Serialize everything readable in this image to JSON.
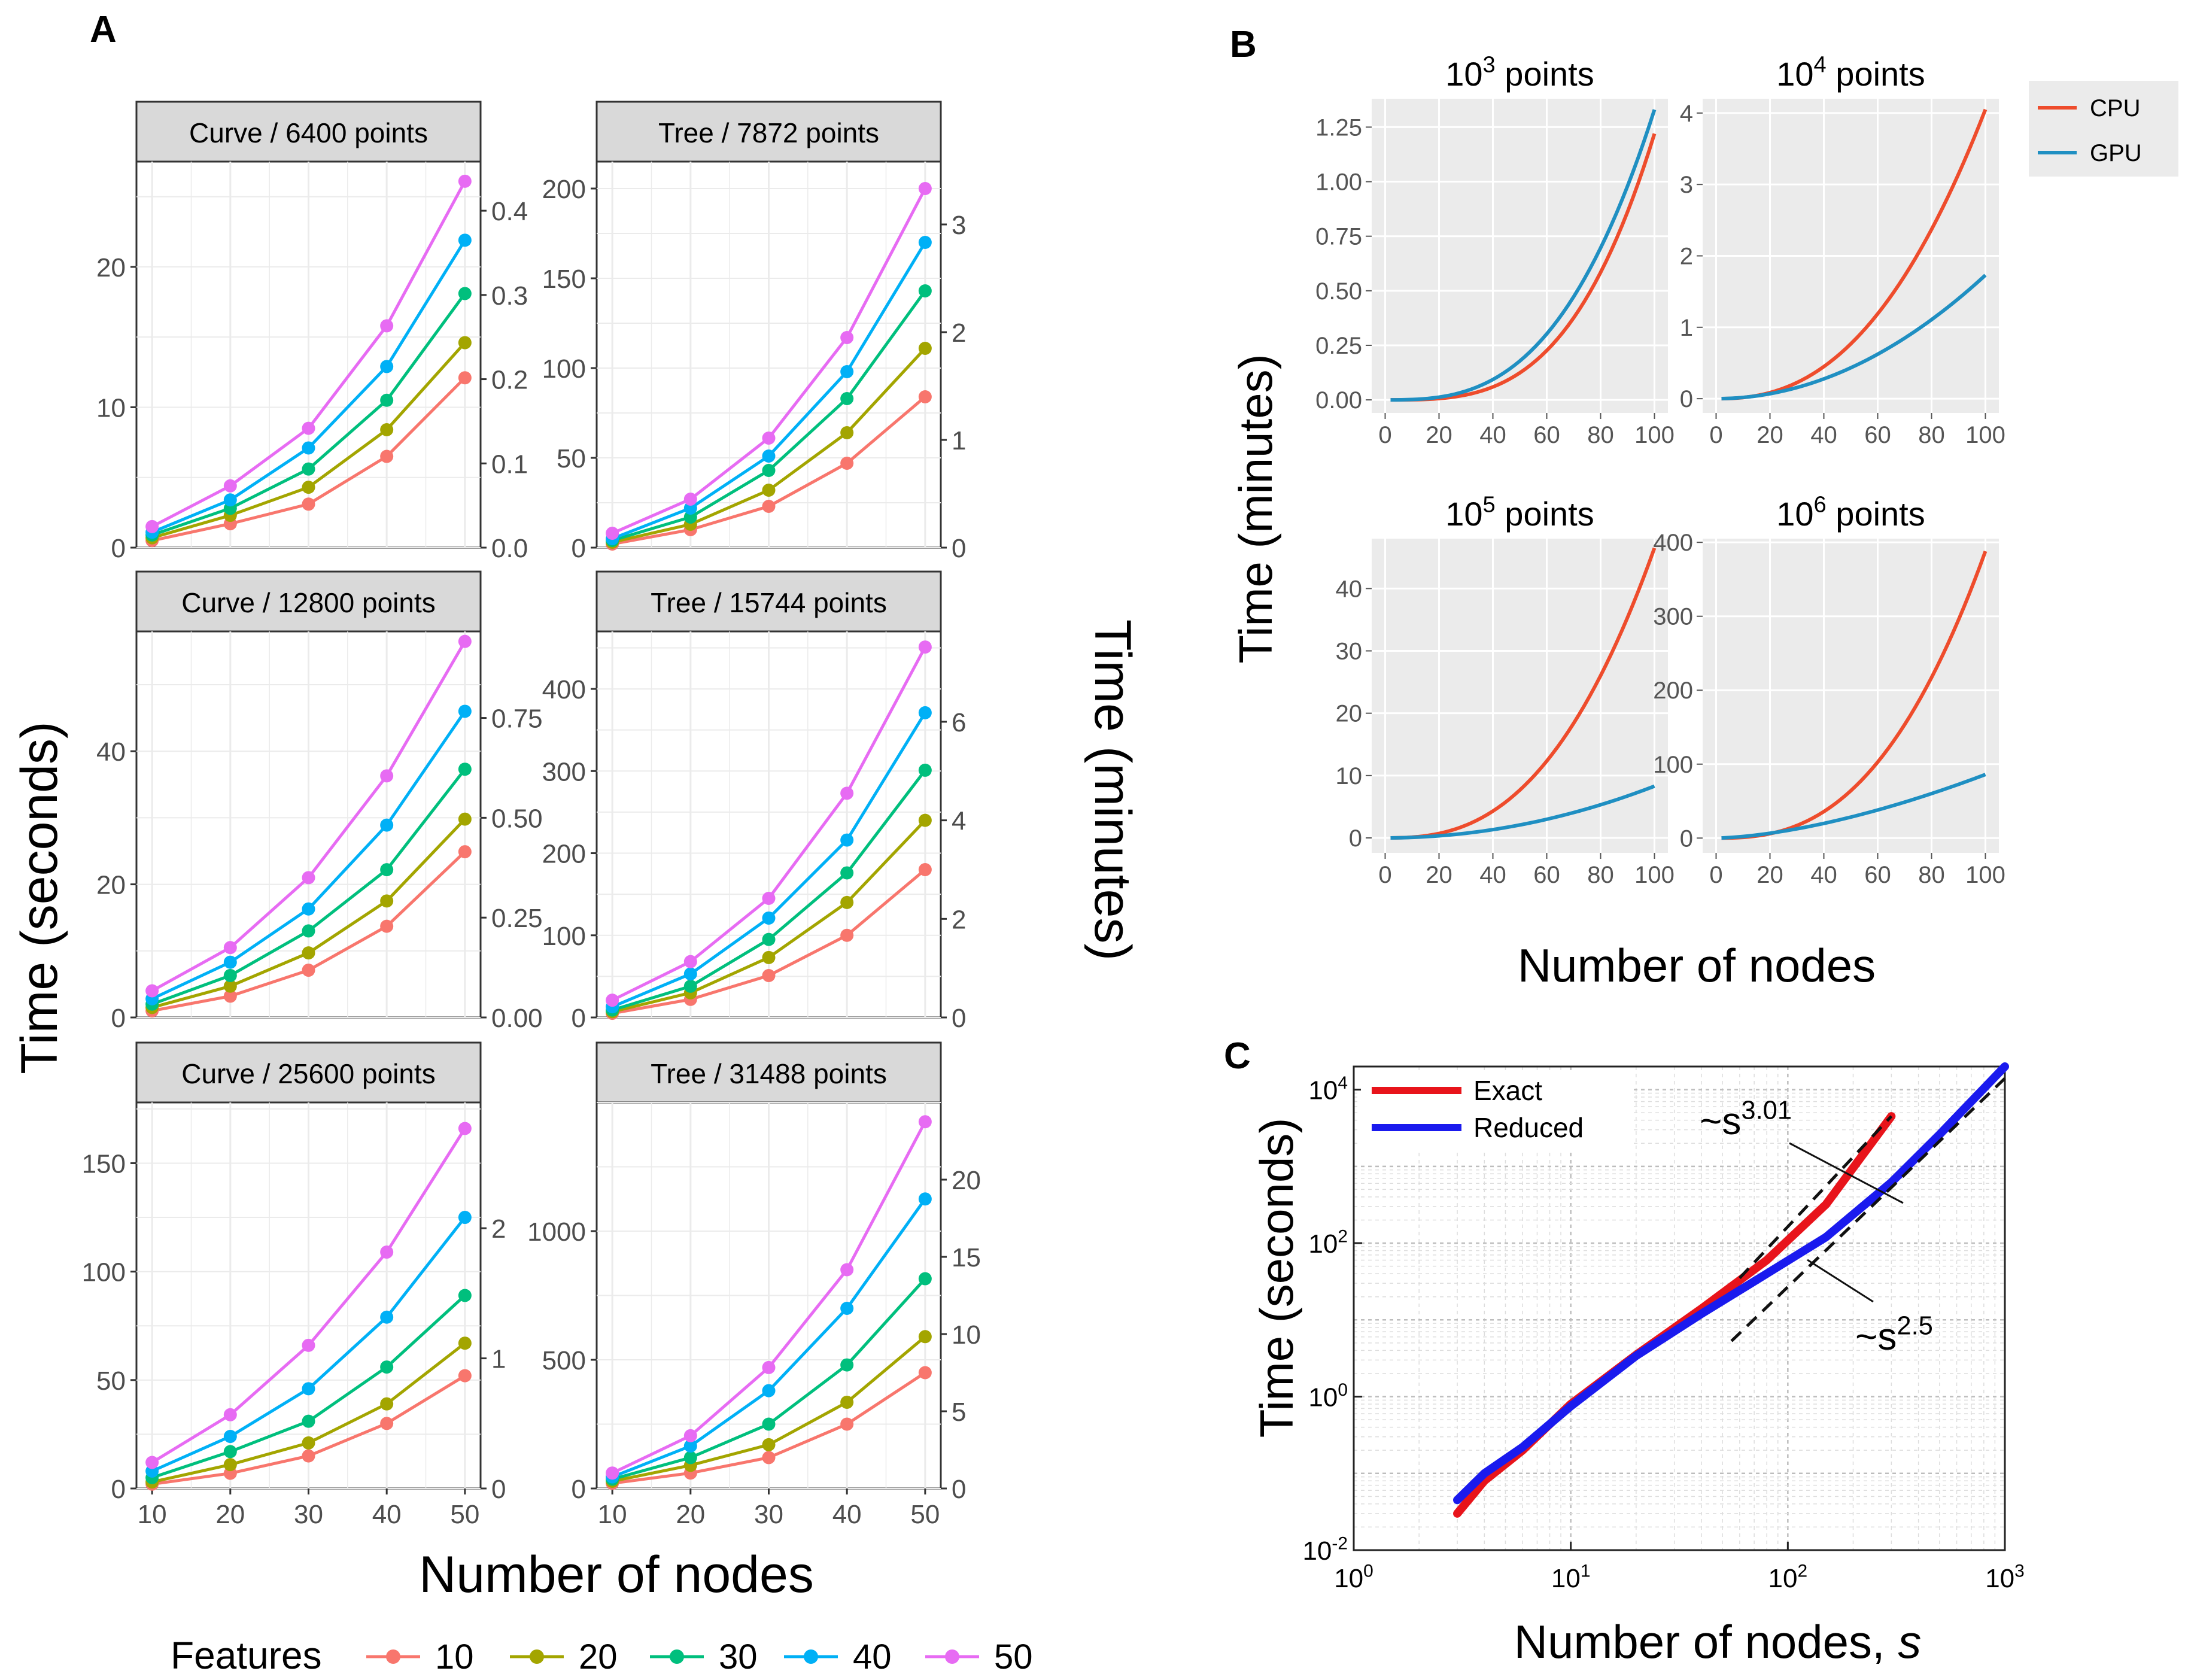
{
  "panel_labels": {
    "a": "A",
    "b": "B",
    "c": "C"
  },
  "colors": {
    "features": [
      "#F8766D",
      "#A3A500",
      "#00BF7D",
      "#00B0F6",
      "#E76BF3"
    ],
    "cpu": "#EE4C2C",
    "gpu": "#1F8FC2",
    "exact": "#E8141B",
    "reduced": "#1A1AEE",
    "strip": "#D9D9D9",
    "panel_bg_b": "#EBEBEB"
  },
  "chart_data": [
    {
      "id": "A",
      "type": "line",
      "xlabel": "Number of nodes",
      "ylabel_left": "Time (seconds)",
      "ylabel_right": "Time (minutes)",
      "x": [
        10,
        20,
        30,
        40,
        50
      ],
      "x_ticks": [
        "10",
        "20",
        "30",
        "40",
        "50"
      ],
      "legend": {
        "title": "Features",
        "labels": [
          "10",
          "20",
          "30",
          "40",
          "50"
        ]
      },
      "facets": [
        {
          "title": "Curve / 6400 points",
          "ylim": [
            0,
            27.5
          ],
          "yticks": [
            "0",
            "10",
            "20"
          ],
          "yvals": [
            0,
            10,
            20
          ],
          "rticks": [
            "0.0",
            "0.1",
            "0.2",
            "0.3",
            "0.4"
          ],
          "rvals": [
            0,
            6,
            12,
            18,
            24
          ],
          "series": [
            [
              0.5,
              1.7,
              3.1,
              6.5,
              12.1
            ],
            [
              0.7,
              2.3,
              4.3,
              8.4,
              14.6
            ],
            [
              0.9,
              2.8,
              5.6,
              10.5,
              18.1
            ],
            [
              1.1,
              3.4,
              7.1,
              12.9,
              21.9
            ],
            [
              1.5,
              4.4,
              8.5,
              15.8,
              26.1
            ]
          ]
        },
        {
          "title": "Tree / 7872 points",
          "ylim": [
            0,
            215
          ],
          "yticks": [
            "0",
            "50",
            "100",
            "150",
            "200"
          ],
          "yvals": [
            0,
            50,
            100,
            150,
            200
          ],
          "rticks": [
            "0",
            "1",
            "2",
            "3"
          ],
          "rvals": [
            0,
            60,
            120,
            180
          ],
          "series": [
            [
              2,
              10,
              23,
              47,
              84
            ],
            [
              3,
              13,
              32,
              64,
              111
            ],
            [
              4,
              17,
              43,
              83,
              143
            ],
            [
              5,
              22,
              51,
              98,
              170
            ],
            [
              8,
              27,
              61,
              117,
              200
            ]
          ]
        },
        {
          "title": "Curve / 12800 points",
          "ylim": [
            0,
            58
          ],
          "yticks": [
            "0",
            "20",
            "40"
          ],
          "yvals": [
            0,
            20,
            40
          ],
          "rticks": [
            "0.00",
            "0.25",
            "0.50",
            "0.75"
          ],
          "rvals": [
            0,
            15,
            30,
            45
          ],
          "series": [
            [
              1.0,
              3.2,
              7.1,
              13.7,
              24.9
            ],
            [
              1.5,
              4.7,
              9.7,
              17.5,
              29.8
            ],
            [
              2.0,
              6.3,
              13.0,
              22.2,
              37.3
            ],
            [
              2.8,
              8.3,
              16.3,
              28.9,
              46.0
            ],
            [
              4.0,
              10.5,
              21.0,
              36.3,
              56.5
            ]
          ]
        },
        {
          "title": "Tree / 15744 points",
          "ylim": [
            0,
            470
          ],
          "yticks": [
            "0",
            "100",
            "200",
            "300",
            "400"
          ],
          "yvals": [
            0,
            100,
            200,
            300,
            400
          ],
          "rticks": [
            "0",
            "2",
            "4",
            "6"
          ],
          "rvals": [
            0,
            120,
            240,
            360
          ],
          "series": [
            [
              5,
              22,
              51,
              100,
              180
            ],
            [
              7,
              30,
              73,
              140,
              240
            ],
            [
              9,
              38,
              95,
              176,
              301
            ],
            [
              13,
              53,
              121,
              216,
              371
            ],
            [
              21,
              68,
              145,
              273,
              451
            ]
          ]
        },
        {
          "title": "Curve / 25600 points",
          "ylim": [
            0,
            178
          ],
          "yticks": [
            "0",
            "50",
            "100",
            "150"
          ],
          "yvals": [
            0,
            50,
            100,
            150
          ],
          "rticks": [
            "0",
            "1",
            "2"
          ],
          "rvals": [
            0,
            60,
            120
          ],
          "series": [
            [
              2,
              7,
              15,
              30,
              52
            ],
            [
              3,
              11,
              21,
              39,
              67
            ],
            [
              5,
              17,
              31,
              56,
              89
            ],
            [
              8,
              24,
              46,
              79,
              125
            ],
            [
              12,
              34,
              66,
              109,
              166
            ]
          ]
        },
        {
          "title": "Tree / 31488 points",
          "ylim": [
            0,
            1500
          ],
          "yticks": [
            "0",
            "500",
            "1000"
          ],
          "yvals": [
            0,
            500,
            1000
          ],
          "rticks": [
            "0",
            "5",
            "10",
            "15",
            "20"
          ],
          "rvals": [
            0,
            300,
            600,
            900,
            1200
          ],
          "series": [
            [
              20,
              60,
              120,
              250,
              450
            ],
            [
              28,
              90,
              170,
              335,
              590
            ],
            [
              36,
              120,
              250,
              480,
              815
            ],
            [
              45,
              165,
              380,
              700,
              1125
            ],
            [
              60,
              205,
              470,
              850,
              1425
            ]
          ]
        }
      ]
    },
    {
      "id": "B",
      "type": "line",
      "xlabel": "Number of nodes",
      "ylabel": "Time (minutes)",
      "x_ticks": [
        "0",
        "20",
        "40",
        "60",
        "80",
        "100"
      ],
      "x_vals": [
        0,
        20,
        40,
        60,
        80,
        100
      ],
      "legend": [
        "CPU",
        "GPU"
      ],
      "facets": [
        {
          "title_base": "10",
          "title_exp": "3",
          "title_rest": " points",
          "ylim": [
            -0.06,
            1.38
          ],
          "yticks": [
            "0.00",
            "0.25",
            "0.50",
            "0.75",
            "1.00",
            "1.25"
          ],
          "yvals": [
            0,
            0.25,
            0.5,
            0.75,
            1.0,
            1.25
          ],
          "cpu_end": 1.22,
          "cpu_pow": 3.3,
          "gpu_end": 1.33,
          "gpu_pow": 2.9
        },
        {
          "title_base": "10",
          "title_exp": "4",
          "title_rest": " points",
          "ylim": [
            -0.2,
            4.2
          ],
          "yticks": [
            "0",
            "1",
            "2",
            "3",
            "4"
          ],
          "yvals": [
            0,
            1,
            2,
            3,
            4
          ],
          "cpu_end": 4.05,
          "cpu_pow": 2.4,
          "gpu_end": 1.73,
          "gpu_pow": 2.0
        },
        {
          "title_base": "10",
          "title_exp": "5",
          "title_rest": " points",
          "ylim": [
            -2.4,
            48
          ],
          "yticks": [
            "0",
            "10",
            "20",
            "30",
            "40"
          ],
          "yvals": [
            0,
            10,
            20,
            30,
            40
          ],
          "cpu_end": 46.5,
          "cpu_pow": 2.6,
          "gpu_end": 8.3,
          "gpu_pow": 2.0
        },
        {
          "title_base": "10",
          "title_exp": "6",
          "title_rest": " points",
          "ylim": [
            -20,
            405
          ],
          "yticks": [
            "0",
            "100",
            "200",
            "300",
            "400"
          ],
          "yvals": [
            0,
            100,
            200,
            300,
            400
          ],
          "cpu_end": 388,
          "cpu_pow": 2.6,
          "gpu_end": 86,
          "gpu_pow": 1.6
        }
      ]
    },
    {
      "id": "C",
      "type": "line",
      "scale": "log-log",
      "xlabel": "Number of nodes, ",
      "xlabel_var": "s",
      "ylabel": "Time (seconds)",
      "xlim": [
        1,
        1000
      ],
      "ylim": [
        0.01,
        20000
      ],
      "x_tick_base": "10",
      "x_tick_exps": [
        "0",
        "1",
        "2",
        "3"
      ],
      "y_tick_base": "10",
      "y_tick_exps": [
        "-2",
        "0",
        "2",
        "4"
      ],
      "series": [
        {
          "name": "Exact",
          "x": [
            3,
            4,
            6,
            10,
            20,
            40,
            80,
            150,
            300
          ],
          "y": [
            0.03,
            0.08,
            0.2,
            0.8,
            3.5,
            14,
            60,
            320,
            4500
          ]
        },
        {
          "name": "Reduced",
          "x": [
            3,
            4,
            6,
            10,
            20,
            40,
            80,
            150,
            300,
            500,
            1000
          ],
          "y": [
            0.045,
            0.1,
            0.22,
            0.75,
            3.4,
            12,
            40,
            120,
            620,
            2600,
            20000
          ]
        }
      ],
      "fits": [
        {
          "label_base": "~s",
          "label_exp": "3.01",
          "x": [
            60,
            300
          ],
          "y": [
            35.1,
            4500
          ]
        },
        {
          "label_base": "~s",
          "label_exp": "2.5",
          "x": [
            55,
            1000
          ],
          "y": [
            5.3,
            14000
          ]
        }
      ]
    }
  ]
}
